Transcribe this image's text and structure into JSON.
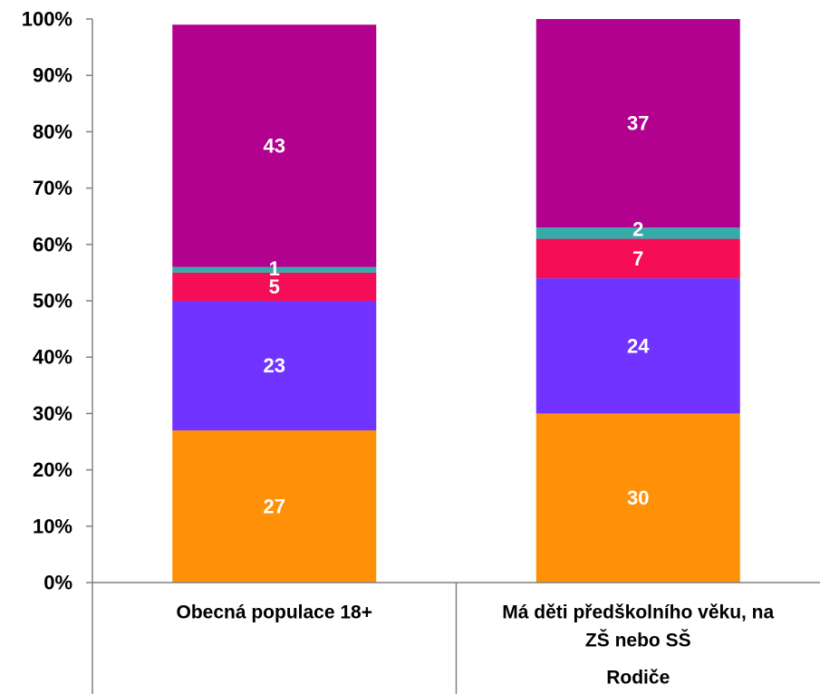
{
  "chart_data": {
    "type": "bar",
    "stacked": true,
    "percent_stacked": true,
    "ylim": [
      0,
      100
    ],
    "yticks": [
      "0%",
      "10%",
      "20%",
      "30%",
      "40%",
      "50%",
      "60%",
      "70%",
      "80%",
      "90%",
      "100%"
    ],
    "categories": [
      [
        "Obecná populace 18+"
      ],
      [
        "Má děti předškolního věku, na",
        "ZŠ nebo SŠ"
      ]
    ],
    "group_label": "Rodiče",
    "series": [
      {
        "values": [
          27,
          30
        ],
        "color": "#FF9108"
      },
      {
        "values": [
          23,
          24
        ],
        "color": "#7133FF"
      },
      {
        "values": [
          5,
          7
        ],
        "color": "#F50D55"
      },
      {
        "values": [
          1,
          2
        ],
        "color": "#35ABAA"
      },
      {
        "values": [
          43,
          37
        ],
        "color": "#B2008F"
      }
    ]
  }
}
